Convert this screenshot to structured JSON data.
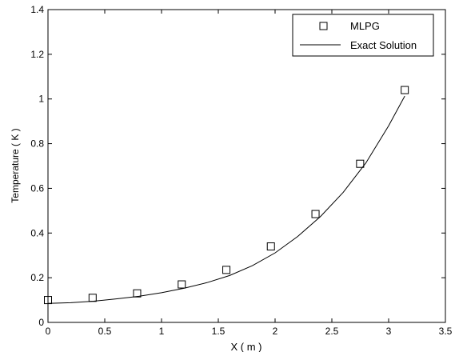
{
  "chart_data": {
    "type": "scatter",
    "title": "",
    "xlabel": "X ( m )",
    "ylabel": "Temperature ( K )",
    "xlim": [
      0,
      3.5
    ],
    "ylim": [
      0,
      1.4
    ],
    "xticks": [
      0,
      0.5,
      1,
      1.5,
      2,
      2.5,
      3,
      3.5
    ],
    "yticks": [
      0,
      0.2,
      0.4,
      0.6,
      0.8,
      1,
      1.2,
      1.4
    ],
    "xtick_labels": [
      "0",
      "0.5",
      "1",
      "1.5",
      "2",
      "2.5",
      "3",
      "3.5"
    ],
    "ytick_labels": [
      "0",
      "0.2",
      "0.4",
      "0.6",
      "0.8",
      "1",
      "1.2",
      "1.4"
    ],
    "grid": false,
    "legend_position": "top-right",
    "series": [
      {
        "name": "MLPG",
        "kind": "markers",
        "marker": "square",
        "color": "#000000",
        "x": [
          0,
          0.393,
          0.785,
          1.178,
          1.571,
          1.963,
          2.356,
          2.749,
          3.142
        ],
        "y": [
          0.1,
          0.11,
          0.13,
          0.17,
          0.235,
          0.34,
          0.485,
          0.71,
          1.04
        ]
      },
      {
        "name": "Exact Solution",
        "kind": "line",
        "color": "#000000",
        "x": [
          0,
          0.2,
          0.4,
          0.6,
          0.8,
          1.0,
          1.2,
          1.4,
          1.6,
          1.8,
          2.0,
          2.2,
          2.4,
          2.6,
          2.8,
          3.0,
          3.142
        ],
        "y": [
          0.085,
          0.088,
          0.095,
          0.105,
          0.117,
          0.133,
          0.153,
          0.178,
          0.21,
          0.254,
          0.311,
          0.385,
          0.474,
          0.582,
          0.714,
          0.88,
          1.013
        ]
      }
    ]
  }
}
